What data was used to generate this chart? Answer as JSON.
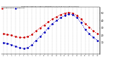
{
  "title": "Milwaukee Weather Outdoor Temperature (vs) Wind Chill (Last 24 Hours)",
  "background_color": "#ffffff",
  "plot_bg": "#ffffff",
  "grid_color": "#888888",
  "hours": [
    0,
    1,
    2,
    3,
    4,
    5,
    6,
    7,
    8,
    9,
    10,
    11,
    12,
    13,
    14,
    15,
    16,
    17,
    18,
    19,
    20,
    21,
    22,
    23
  ],
  "temp": [
    22,
    21,
    20,
    18,
    17,
    17,
    18,
    21,
    26,
    30,
    34,
    38,
    42,
    45,
    48,
    50,
    51,
    50,
    47,
    42,
    36,
    31,
    26,
    22
  ],
  "wind_chill": [
    10,
    9,
    7,
    5,
    3,
    2,
    3,
    7,
    13,
    18,
    24,
    30,
    36,
    40,
    44,
    47,
    49,
    48,
    44,
    37,
    28,
    22,
    17,
    13
  ],
  "temp_color": "#cc0000",
  "wind_chill_color": "#0000bb",
  "ylim_min": -5,
  "ylim_max": 58,
  "yticks": [
    10,
    20,
    30,
    40,
    50
  ],
  "legend_temp": "Outdoor Temp",
  "legend_wc": "Wind Chill",
  "marker_size": 2.0,
  "line_width": 0.7
}
